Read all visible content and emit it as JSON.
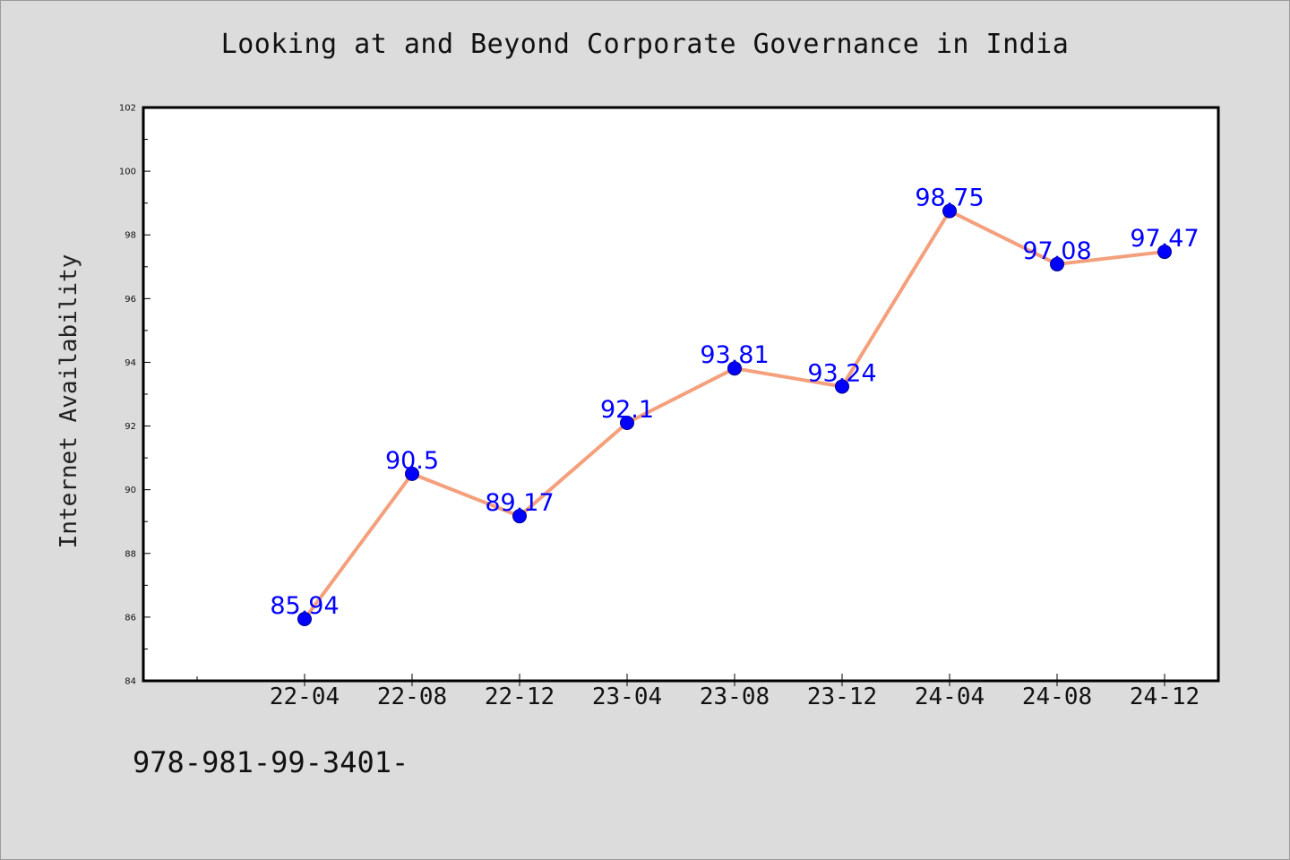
{
  "colors": {
    "background": "#dcdcdc",
    "plot_background": "#ffffff",
    "line": "#f4a07c",
    "marker": "#0000ff",
    "label": "#0000ff"
  },
  "footer": {
    "text": "978-981-99-3401-"
  },
  "chart_data": {
    "type": "line",
    "title": "Looking at and Beyond Corporate Governance in India",
    "xlabel": "",
    "ylabel": "Internet Availability",
    "ylim": [
      84,
      102
    ],
    "y_ticks": [
      84,
      86,
      88,
      90,
      92,
      94,
      96,
      98,
      100,
      102
    ],
    "x_ticks": [
      "22-04",
      "22-08",
      "22-12",
      "23-04",
      "23-08",
      "23-12",
      "24-04",
      "24-08",
      "24-12"
    ],
    "x": [
      "2022-04",
      "2022-08",
      "2022-12",
      "2023-04",
      "2023-08",
      "2023-12",
      "2024-04",
      "2024-08",
      "2024-12"
    ],
    "values": [
      85.94,
      90.5,
      89.17,
      92.1,
      93.81,
      93.24,
      98.75,
      97.08,
      97.47
    ],
    "data_labels": [
      "85.94",
      "90.5",
      "89.17",
      "92.1",
      "93.81",
      "93.24",
      "98.75",
      "97.08",
      "97.47"
    ],
    "grid": false,
    "legend": "none"
  }
}
